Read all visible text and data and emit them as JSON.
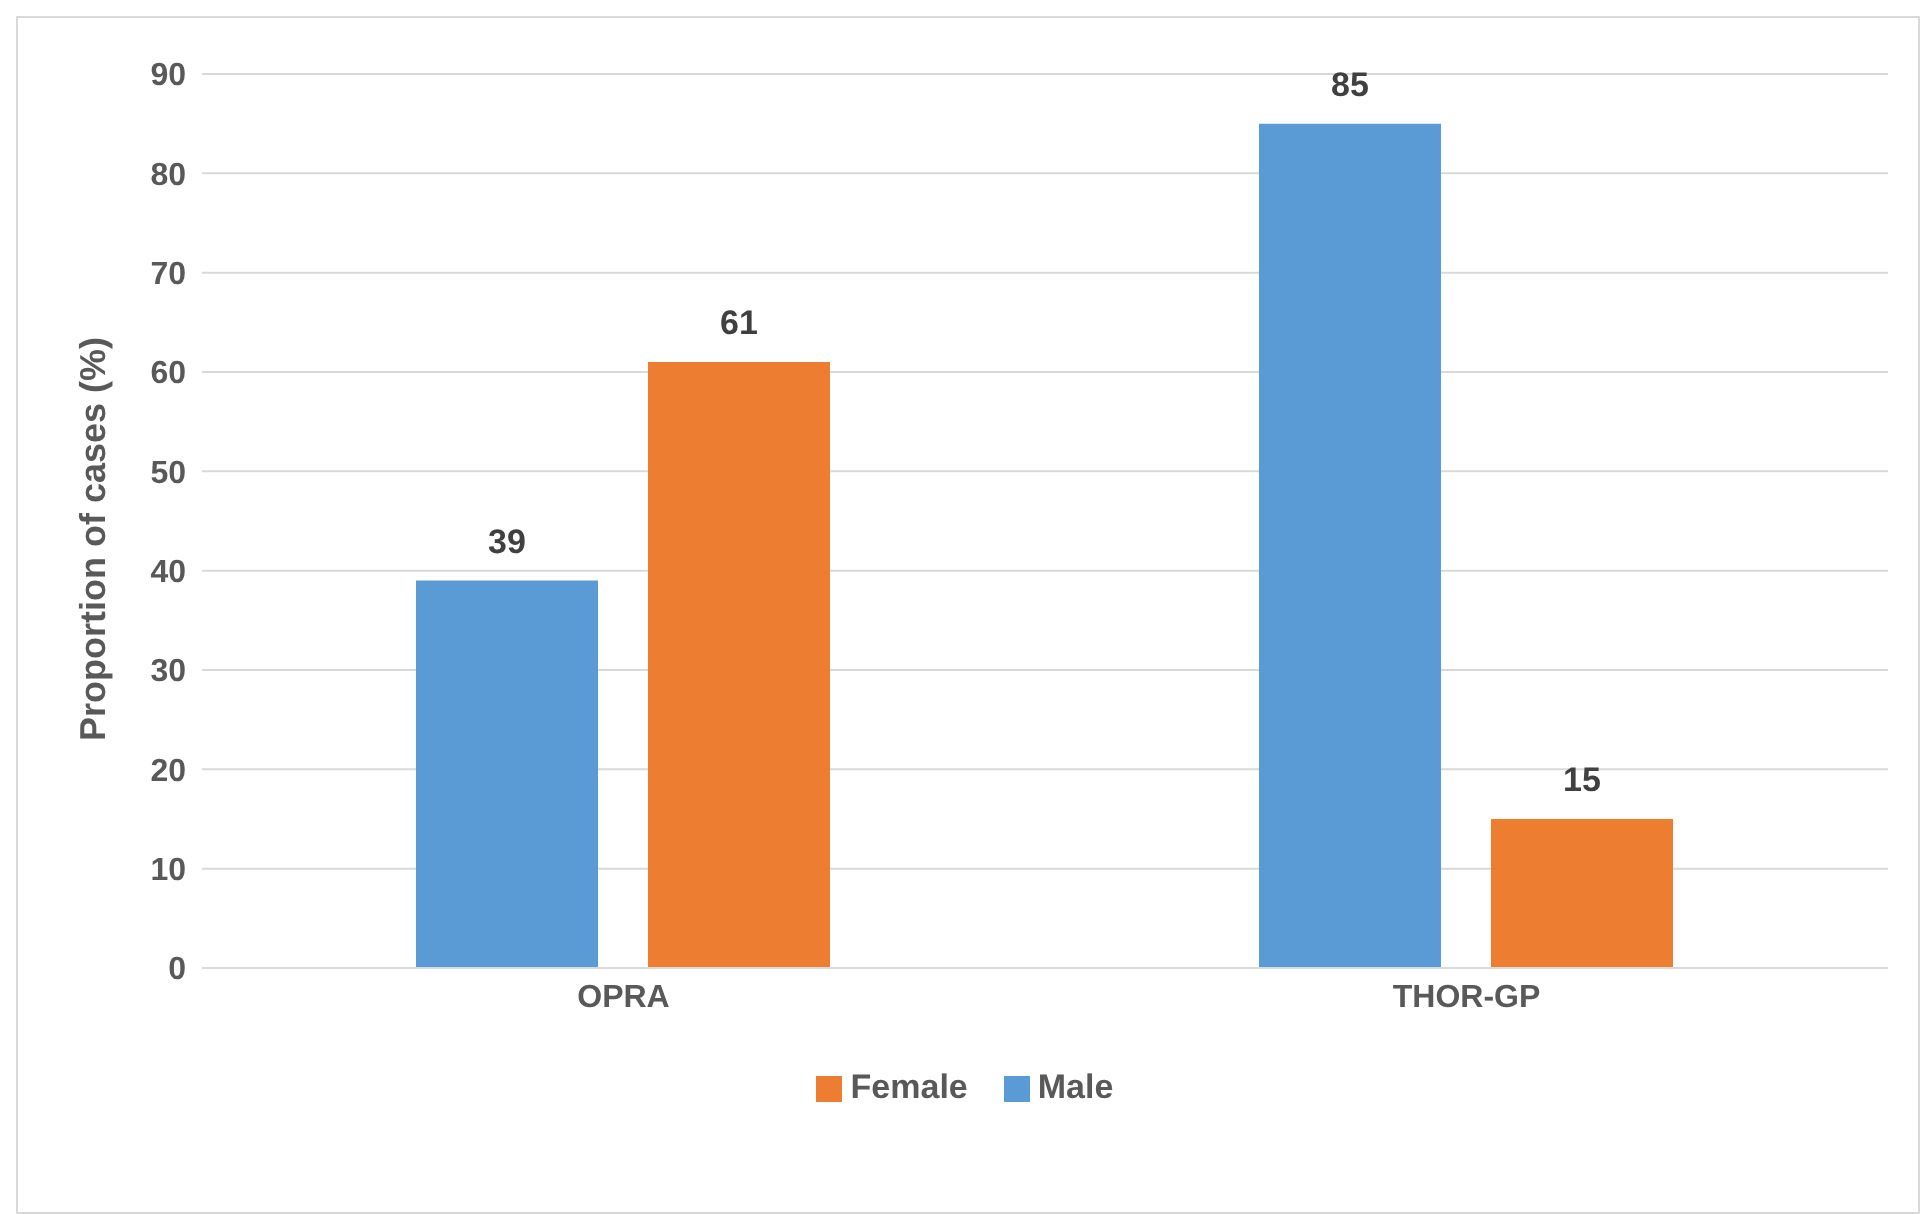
{
  "chart_data": {
    "type": "bar",
    "ylabel": "Proportion of cases (%)",
    "categories": [
      "OPRA",
      "THOR-GP"
    ],
    "series": [
      {
        "name": "Male",
        "color": "#5b9bd5",
        "values": [
          39,
          85
        ]
      },
      {
        "name": "Female",
        "color": "#ed7d31",
        "values": [
          61,
          15
        ]
      }
    ],
    "ylim": [
      0,
      90
    ],
    "yticks": [
      0,
      10,
      20,
      30,
      40,
      50,
      60,
      70,
      80,
      90
    ],
    "grid": "y",
    "legend": "bottom",
    "data_labels": true
  }
}
